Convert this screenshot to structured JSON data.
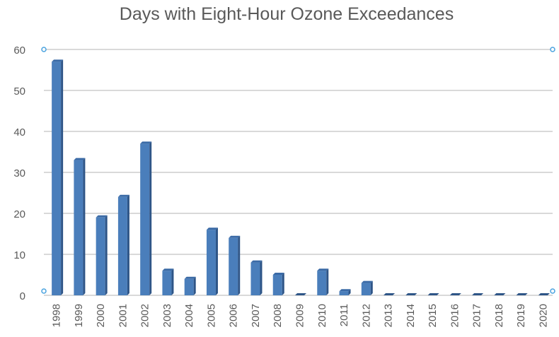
{
  "chart_data": {
    "type": "bar",
    "title": "Days with Eight-Hour Ozone Exceedances",
    "xlabel": "",
    "ylabel": "",
    "ylim": [
      0,
      60
    ],
    "yticks": [
      0,
      10,
      20,
      30,
      40,
      50,
      60
    ],
    "grid": true,
    "legend": "none",
    "colors": {
      "bar_front": "#4a7ebb",
      "bar_side": "#2e5587",
      "bar_top": "#3a6aa6",
      "grid": "#d9d9d9",
      "axis_text": "#595959",
      "handle": "#4aa3df"
    },
    "categories": [
      "1998",
      "1999",
      "2000",
      "2001",
      "2002",
      "2003",
      "2004",
      "2005",
      "2006",
      "2007",
      "2008",
      "2009",
      "2010",
      "2011",
      "2012",
      "2013",
      "2014",
      "2015",
      "2016",
      "2017",
      "2018",
      "2019",
      "2020"
    ],
    "values": [
      57,
      33,
      19,
      24,
      37,
      6,
      4,
      16,
      14,
      8,
      5,
      0,
      6,
      1,
      3,
      0,
      0,
      0,
      0,
      0,
      0,
      0,
      0
    ]
  }
}
